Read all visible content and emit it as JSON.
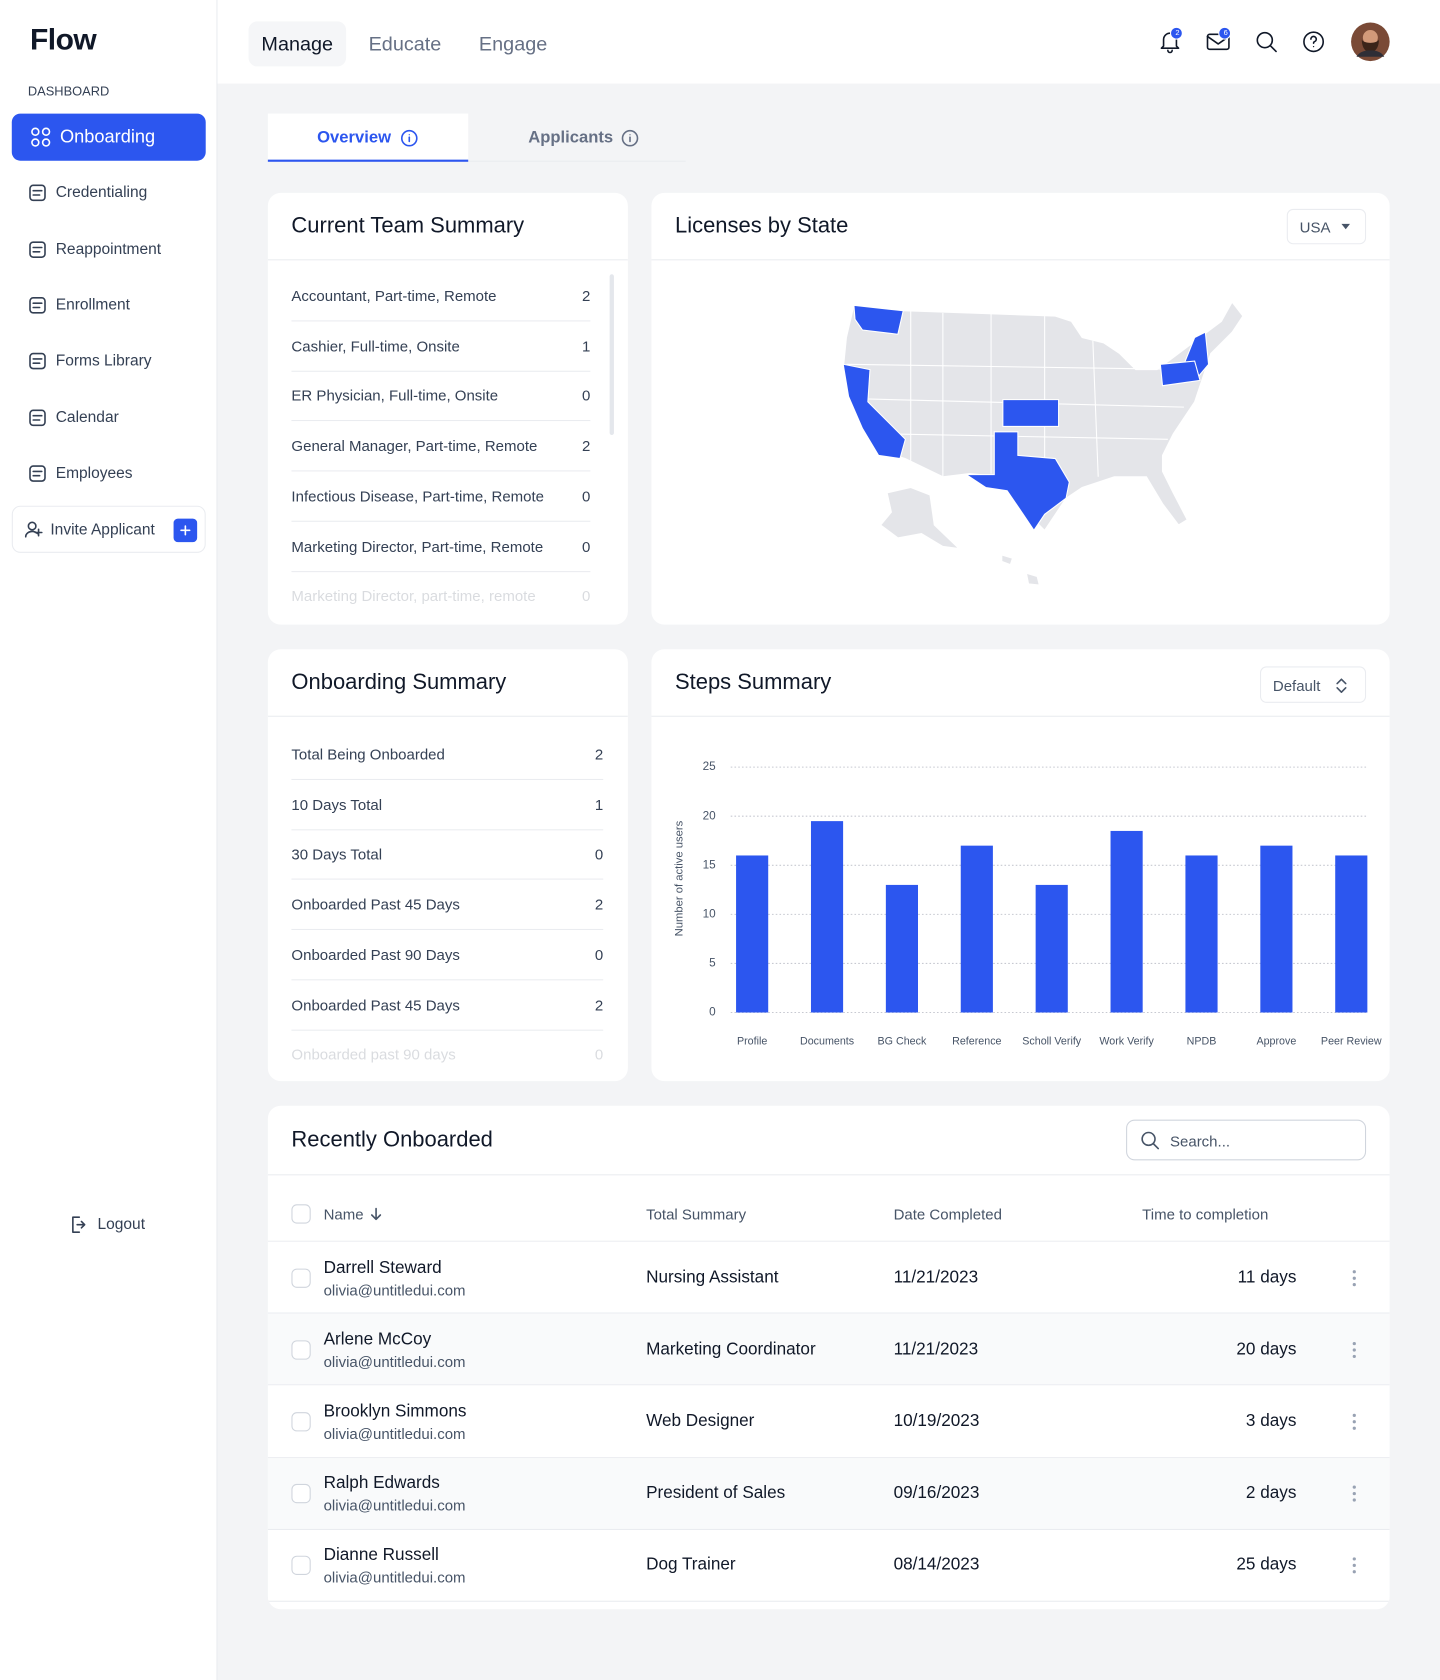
{
  "sidebar": {
    "logo": "Flow",
    "section": "DASHBOARD",
    "items": [
      "Onboarding",
      "Credentialing",
      "Reappointment",
      "Enrollment",
      "Forms Library",
      "Calendar",
      "Employees"
    ],
    "invite": "Invite Applicant",
    "logout": "Logout"
  },
  "header": {
    "tabs": [
      "Manage",
      "Educate",
      "Engage"
    ],
    "notifications": "2",
    "messages": "6"
  },
  "subtabs": [
    "Overview",
    "Applicants"
  ],
  "team_summary": {
    "title": "Current Team Summary",
    "rows": [
      {
        "label": "Accountant, Part-time, Remote",
        "value": 2
      },
      {
        "label": "Cashier, Full-time, Onsite",
        "value": 1
      },
      {
        "label": "ER Physician, Full-time, Onsite",
        "value": 0
      },
      {
        "label": "General Manager, Part-time, Remote",
        "value": 2
      },
      {
        "label": "Infectious Disease, Part-time, Remote",
        "value": 0
      },
      {
        "label": "Marketing Director, Part-time, Remote",
        "value": 0
      },
      {
        "label": "Marketing Director, part-time, remote",
        "value": 0
      }
    ]
  },
  "licenses": {
    "title": "Licenses by State",
    "select": "USA"
  },
  "onboarding_summary": {
    "title": "Onboarding Summary",
    "rows": [
      {
        "label": "Total Being Onboarded",
        "value": 2
      },
      {
        "label": "10 Days Total",
        "value": 1
      },
      {
        "label": "30 Days Total",
        "value": 0
      },
      {
        "label": "Onboarded Past 45 Days",
        "value": 2
      },
      {
        "label": "Onboarded Past 90 Days",
        "value": 0
      },
      {
        "label": "Onboarded Past 45 Days",
        "value": 2
      },
      {
        "label": "Onboarded past 90 days",
        "value": 0
      }
    ]
  },
  "steps": {
    "title": "Steps Summary",
    "select": "Default"
  },
  "chart_data": {
    "type": "bar",
    "y_label": "Number of active users",
    "categories": [
      "Profile",
      "Documents",
      "BG Check",
      "Reference",
      "Scholl Verify",
      "Work Verify",
      "NPDB",
      "Approve",
      "Peer Review"
    ],
    "values": [
      16,
      19.5,
      13,
      17,
      13,
      18.5,
      16,
      17,
      16
    ],
    "color": "#2c56ef",
    "ylim": [
      0,
      25
    ],
    "yticks": [
      0,
      5,
      10,
      15,
      20,
      25
    ],
    "grid": true
  },
  "recent": {
    "title": "Recently Onboarded",
    "search": "Search...",
    "columns": [
      "Name",
      "Total Summary",
      "Date Completed",
      "Time to completion"
    ],
    "rows": [
      {
        "name": "Darrell Steward",
        "email": "olivia@untitledui.com",
        "summary": "Nursing Assistant",
        "date": "11/21/2023",
        "time": "11 days"
      },
      {
        "name": "Arlene McCoy",
        "email": "olivia@untitledui.com",
        "summary": "Marketing Coordinator",
        "date": "11/21/2023",
        "time": "20 days"
      },
      {
        "name": "Brooklyn Simmons",
        "email": "olivia@untitledui.com",
        "summary": "Web Designer",
        "date": "10/19/2023",
        "time": "3 days"
      },
      {
        "name": "Ralph Edwards",
        "email": "olivia@untitledui.com",
        "summary": "President of Sales",
        "date": "09/16/2023",
        "time": "2 days"
      },
      {
        "name": "Dianne Russell",
        "email": "olivia@untitledui.com",
        "summary": "Dog Trainer",
        "date": "08/14/2023",
        "time": "25 days"
      }
    ]
  }
}
